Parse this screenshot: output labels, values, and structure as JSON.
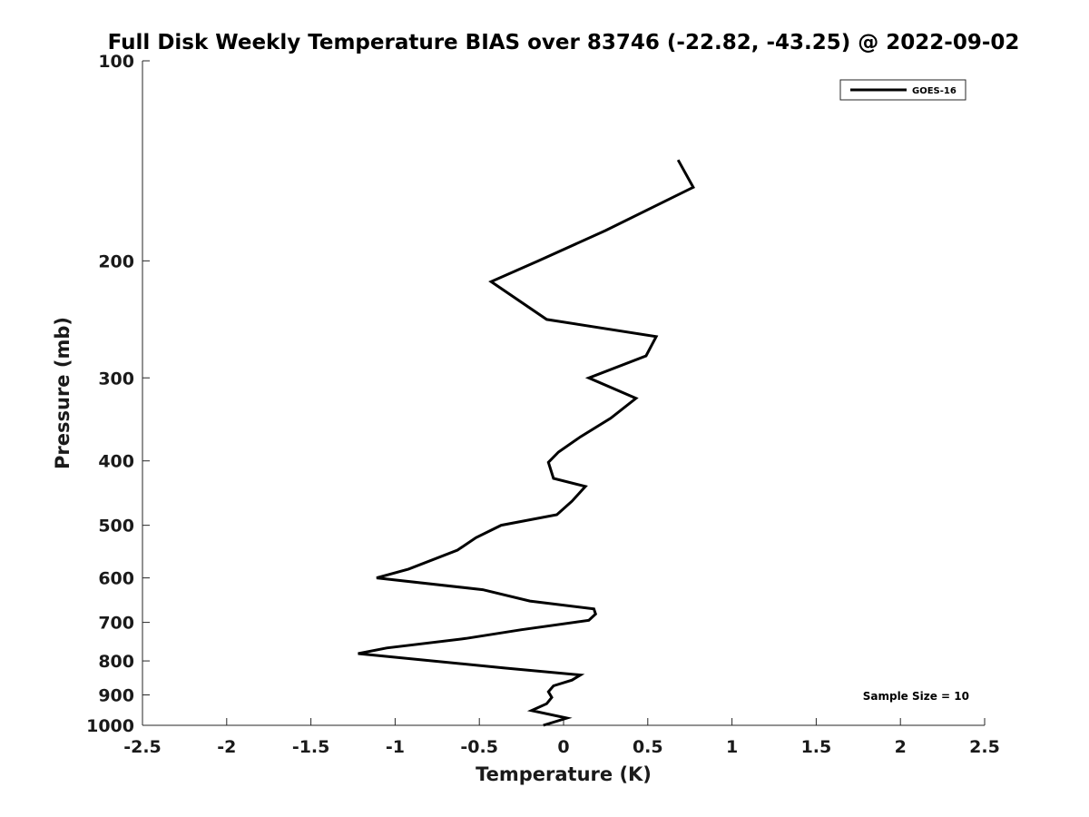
{
  "chart_data": {
    "type": "line",
    "title": "Full Disk Weekly Temperature BIAS over 83746 (-22.82, -43.25) @ 2022-09-02",
    "xlabel": "Temperature (K)",
    "ylabel": "Pressure (mb)",
    "xlim": [
      -2.5,
      2.5
    ],
    "ylim": [
      1000,
      100
    ],
    "yscale": "log",
    "y_inverted": true,
    "grid": false,
    "legend_position": "top-right",
    "x_ticks": [
      -2.5,
      -2,
      -1.5,
      -1,
      -0.5,
      0,
      0.5,
      1,
      1.5,
      2,
      2.5
    ],
    "x_tick_labels": [
      "-2.5",
      "-2",
      "-1.5",
      "-1",
      "-0.5",
      "0",
      "0.5",
      "1",
      "1.5",
      "2",
      "2.5"
    ],
    "y_ticks": [
      100,
      200,
      300,
      400,
      500,
      600,
      700,
      800,
      900,
      1000
    ],
    "y_tick_labels": [
      "100",
      "200",
      "300",
      "400",
      "500",
      "600",
      "700",
      "800",
      "900",
      "1000"
    ],
    "annotation": "Sample Size = 10",
    "series": [
      {
        "name": "GOES-16",
        "color": "#000000",
        "points": [
          {
            "x": 0.68,
            "y": 141
          },
          {
            "x": 0.77,
            "y": 155
          },
          {
            "x": 0.25,
            "y": 180
          },
          {
            "x": -0.15,
            "y": 200
          },
          {
            "x": -0.43,
            "y": 215
          },
          {
            "x": -0.1,
            "y": 245
          },
          {
            "x": 0.55,
            "y": 260
          },
          {
            "x": 0.49,
            "y": 278
          },
          {
            "x": 0.15,
            "y": 300
          },
          {
            "x": 0.43,
            "y": 322
          },
          {
            "x": 0.28,
            "y": 345
          },
          {
            "x": 0.1,
            "y": 368
          },
          {
            "x": -0.03,
            "y": 388
          },
          {
            "x": -0.09,
            "y": 402
          },
          {
            "x": -0.06,
            "y": 425
          },
          {
            "x": 0.13,
            "y": 437
          },
          {
            "x": 0.05,
            "y": 460
          },
          {
            "x": -0.04,
            "y": 482
          },
          {
            "x": -0.37,
            "y": 500
          },
          {
            "x": -0.52,
            "y": 522
          },
          {
            "x": -0.63,
            "y": 545
          },
          {
            "x": -0.92,
            "y": 582
          },
          {
            "x": -1.11,
            "y": 600
          },
          {
            "x": -0.48,
            "y": 625
          },
          {
            "x": -0.2,
            "y": 650
          },
          {
            "x": 0.18,
            "y": 668
          },
          {
            "x": 0.19,
            "y": 680
          },
          {
            "x": 0.15,
            "y": 695
          },
          {
            "x": -0.25,
            "y": 718
          },
          {
            "x": -0.58,
            "y": 740
          },
          {
            "x": -1.05,
            "y": 765
          },
          {
            "x": -1.22,
            "y": 780
          },
          {
            "x": -0.35,
            "y": 820
          },
          {
            "x": 0.1,
            "y": 840
          },
          {
            "x": 0.05,
            "y": 855
          },
          {
            "x": -0.06,
            "y": 872
          },
          {
            "x": -0.09,
            "y": 890
          },
          {
            "x": -0.07,
            "y": 908
          },
          {
            "x": -0.1,
            "y": 928
          },
          {
            "x": -0.19,
            "y": 950
          },
          {
            "x": 0.02,
            "y": 975
          },
          {
            "x": -0.12,
            "y": 1000
          }
        ]
      }
    ]
  }
}
